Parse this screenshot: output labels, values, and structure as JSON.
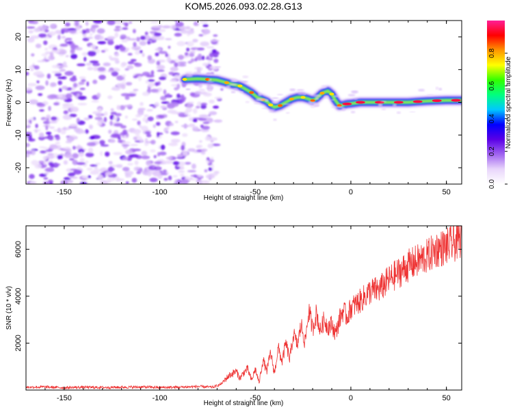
{
  "title": "KOM5.2026.093.02.28.G13",
  "chart_data": [
    {
      "type": "heatmap",
      "xlabel": "Height of straight line (km)",
      "ylabel": "Frequency (Hz)",
      "xlim": [
        -170,
        58
      ],
      "ylim": [
        -25,
        25
      ],
      "x_ticks": [
        "-150",
        "-100",
        "-50",
        "0",
        "50"
      ],
      "x_tick_values": [
        -150,
        -100,
        -50,
        0,
        50
      ],
      "y_ticks": [
        "-20",
        "-10",
        "0",
        "10",
        "20"
      ],
      "y_tick_values": [
        -20,
        -10,
        0,
        10,
        20
      ],
      "grid": false,
      "noise_region_x": [
        -170,
        -70
      ],
      "ridge_trace": [
        [
          -87,
          7
        ],
        [
          -80,
          7.2
        ],
        [
          -75,
          7.0
        ],
        [
          -70,
          6.8
        ],
        [
          -65,
          6.0
        ],
        [
          -62,
          5.5
        ],
        [
          -58,
          5.0
        ],
        [
          -55,
          4.0
        ],
        [
          -52,
          3.0
        ],
        [
          -49,
          1.5
        ],
        [
          -46,
          0.8
        ],
        [
          -44,
          0.3
        ],
        [
          -42,
          -0.8
        ],
        [
          -40,
          -1.5
        ],
        [
          -37,
          -1.0
        ],
        [
          -34,
          0.0
        ],
        [
          -31,
          1.0
        ],
        [
          -28,
          1.5
        ],
        [
          -25,
          1.5
        ],
        [
          -22,
          1.0
        ],
        [
          -20,
          0.5
        ],
        [
          -18,
          1.2
        ],
        [
          -15,
          2.8
        ],
        [
          -12,
          3.5
        ],
        [
          -10,
          2.5
        ],
        [
          -8,
          0.5
        ],
        [
          -6,
          -1.0
        ],
        [
          -4,
          -0.8
        ],
        [
          -2,
          -0.5
        ],
        [
          0,
          -0.4
        ],
        [
          5,
          0.0
        ],
        [
          10,
          0.0
        ],
        [
          15,
          0.0
        ],
        [
          20,
          0.0
        ],
        [
          25,
          0.0
        ],
        [
          30,
          0.0
        ],
        [
          35,
          0.2
        ],
        [
          40,
          0.4
        ],
        [
          45,
          0.5
        ],
        [
          50,
          0.6
        ],
        [
          55,
          0.6
        ],
        [
          58,
          0.6
        ]
      ],
      "colorbar": {
        "label": "Normalized spectral amplitude",
        "ticks": [
          "0.0",
          "0.2",
          "0.4",
          "0.6",
          "0.8"
        ],
        "tick_values": [
          0.0,
          0.2,
          0.4,
          0.6,
          0.8
        ],
        "range": [
          0,
          1
        ],
        "colormap": [
          "#ffffff",
          "#e9d6fb",
          "#a064f0",
          "#5a00e6",
          "#0000ff",
          "#00c8ff",
          "#00ff7f",
          "#32ff00",
          "#ffff00",
          "#ff9600",
          "#ff0000",
          "#ff1e96"
        ]
      }
    },
    {
      "type": "line",
      "xlabel": "Height of straight line (km)",
      "ylabel": "SNR (10 * v/v)",
      "xlim": [
        -170,
        58
      ],
      "ylim": [
        0,
        7000
      ],
      "x_ticks": [
        "-150",
        "-100",
        "-50",
        "0",
        "50"
      ],
      "x_tick_values": [
        -150,
        -100,
        -50,
        0,
        50
      ],
      "y_ticks": [
        "2000",
        "4000",
        "6000"
      ],
      "y_tick_values": [
        2000,
        4000,
        6000
      ],
      "grid": false,
      "series": [
        {
          "color": "#ee3333",
          "x": [
            -170,
            -160,
            -150,
            -140,
            -130,
            -120,
            -110,
            -100,
            -90,
            -80,
            -72,
            -68,
            -64,
            -60,
            -58,
            -56,
            -54,
            -52,
            -50,
            -48,
            -46,
            -44,
            -42,
            -40,
            -38,
            -36,
            -34,
            -32,
            -30,
            -28,
            -26,
            -24,
            -22,
            -20,
            -18,
            -16,
            -14,
            -12,
            -10,
            -8,
            -6,
            -4,
            -2,
            0,
            5,
            10,
            15,
            20,
            25,
            30,
            35,
            40,
            45,
            50,
            55,
            58
          ],
          "y": [
            120,
            130,
            100,
            120,
            110,
            120,
            130,
            110,
            120,
            150,
            120,
            250,
            600,
            800,
            500,
            750,
            900,
            400,
            900,
            300,
            1300,
            800,
            1600,
            700,
            1800,
            1200,
            2000,
            1300,
            2400,
            1900,
            2800,
            2000,
            3400,
            2600,
            3300,
            2500,
            3000,
            2700,
            2800,
            2400,
            3000,
            3400,
            3100,
            3500,
            3800,
            4200,
            4300,
            4700,
            5000,
            5300,
            5500,
            5700,
            6000,
            6100,
            6300,
            6500
          ]
        }
      ]
    }
  ]
}
